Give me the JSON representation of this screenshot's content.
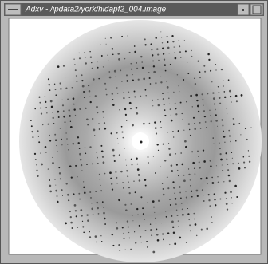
{
  "window": {
    "title": "Adxv - /ipdata2/york/hidapf2_004.image"
  }
}
